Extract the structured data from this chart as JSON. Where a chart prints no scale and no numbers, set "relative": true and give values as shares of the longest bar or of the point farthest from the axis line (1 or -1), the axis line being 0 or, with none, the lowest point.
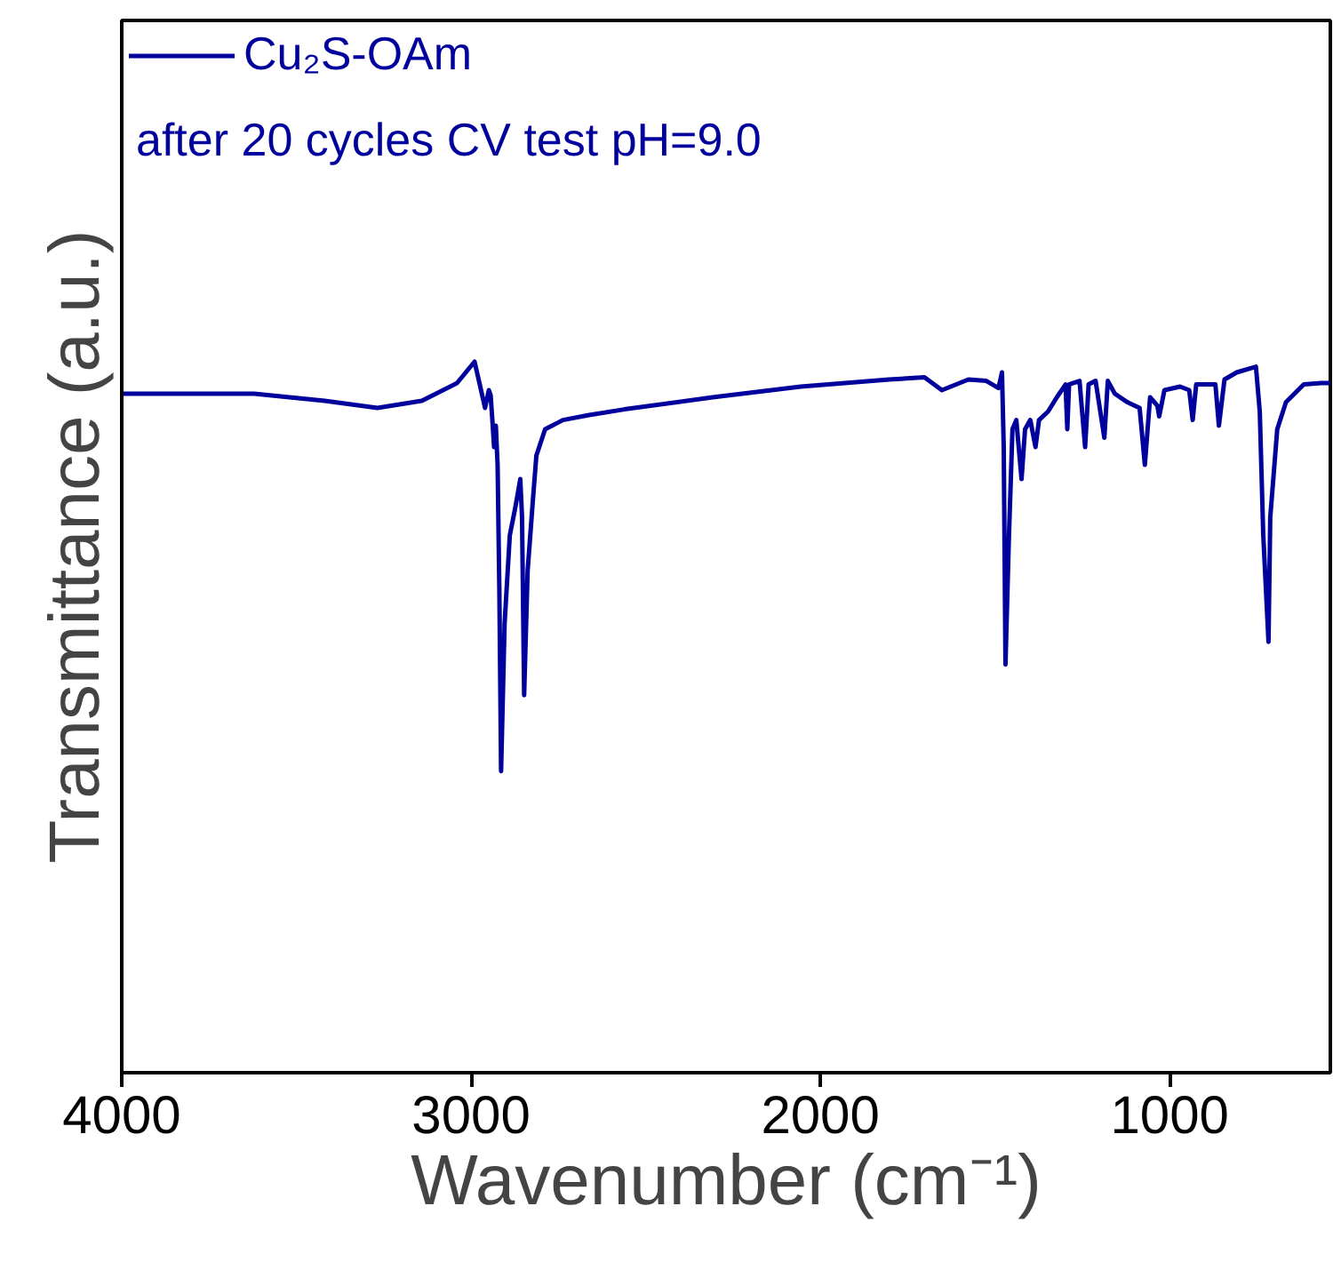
{
  "chart_data": {
    "type": "line",
    "relative": true,
    "xlabel": "Wavenumber (cm⁻¹)",
    "ylabel": "Transmittance (a.u.)",
    "annotations": [
      "after 20 cycles CV test pH=9.0"
    ],
    "xlim": [
      4000,
      540
    ],
    "xticks": [
      4000,
      3000,
      2000,
      1000
    ],
    "grid": false,
    "legend": "top left",
    "marker": "none",
    "line_style": "solid",
    "x": [
      4000,
      3722,
      3621,
      3419,
      3268,
      3141,
      3040,
      2990,
      2975,
      2960,
      2949,
      2944,
      2939,
      2934,
      2929,
      2924,
      2919,
      2914,
      2904,
      2889,
      2874,
      2859,
      2854,
      2848,
      2838,
      2823,
      2813,
      2788,
      2737,
      2662,
      2561,
      2308,
      2056,
      1803,
      1702,
      1652,
      1576,
      1525,
      1490,
      1480,
      1475,
      1470,
      1460,
      1450,
      1439,
      1424,
      1414,
      1399,
      1384,
      1374,
      1348,
      1323,
      1298,
      1293,
      1288,
      1258,
      1242,
      1232,
      1212,
      1187,
      1177,
      1157,
      1121,
      1086,
      1071,
      1056,
      1035,
      1030,
      1015,
      970,
      944,
      934,
      924,
      869,
      859,
      843,
      808,
      753,
      742,
      732,
      717,
      712,
      692,
      667,
      616,
      566,
      540
    ],
    "series": [
      {
        "name": "Cu₂S-OAm",
        "color": "#00009c",
        "values": [
          0.955,
          0.955,
          0.955,
          0.945,
          0.935,
          0.945,
          0.97,
          1.0,
          0.968,
          0.935,
          0.96,
          0.953,
          0.918,
          0.88,
          0.91,
          0.855,
          0.681,
          0.424,
          0.631,
          0.756,
          0.793,
          0.835,
          0.781,
          0.531,
          0.706,
          0.805,
          0.868,
          0.905,
          0.918,
          0.925,
          0.933,
          0.95,
          0.965,
          0.975,
          0.978,
          0.96,
          0.975,
          0.973,
          0.963,
          0.985,
          0.88,
          0.574,
          0.756,
          0.905,
          0.918,
          0.835,
          0.905,
          0.918,
          0.88,
          0.918,
          0.93,
          0.95,
          0.968,
          0.905,
          0.968,
          0.973,
          0.88,
          0.968,
          0.973,
          0.893,
          0.973,
          0.955,
          0.943,
          0.935,
          0.855,
          0.95,
          0.938,
          0.923,
          0.96,
          0.965,
          0.96,
          0.918,
          0.968,
          0.968,
          0.91,
          0.975,
          0.985,
          0.993,
          0.93,
          0.756,
          0.606,
          0.781,
          0.905,
          0.943,
          0.968,
          0.97,
          0.97
        ]
      }
    ]
  }
}
